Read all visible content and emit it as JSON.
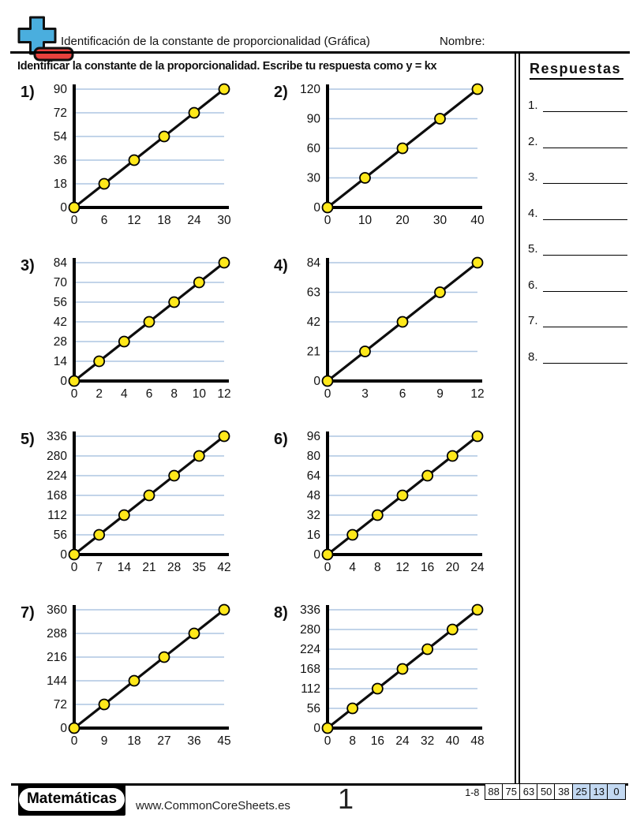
{
  "header": {
    "title": "Identificación de la constante de proporcionalidad (Gráfica)",
    "name_label": "Nombre:"
  },
  "instruction": "Identificar la constante de la proporcionalidad. Escribe tu respuesta como y = kx",
  "answers": {
    "title": "Respuestas",
    "items": [
      {
        "label": "1."
      },
      {
        "label": "2."
      },
      {
        "label": "3."
      },
      {
        "label": "4."
      },
      {
        "label": "5."
      },
      {
        "label": "6."
      },
      {
        "label": "7."
      },
      {
        "label": "8."
      }
    ]
  },
  "chart_data": [
    {
      "type": "line",
      "number_label": "1)",
      "x_ticks": [
        0,
        6,
        12,
        18,
        24,
        30
      ],
      "y_ticks": [
        0,
        18,
        36,
        54,
        72,
        90
      ],
      "points": [
        [
          0,
          0
        ],
        [
          6,
          18
        ],
        [
          12,
          36
        ],
        [
          18,
          54
        ],
        [
          24,
          72
        ],
        [
          30,
          90
        ]
      ],
      "xlim": [
        0,
        30
      ],
      "ylim": [
        0,
        90
      ],
      "grid": "horizontal",
      "legend": "none"
    },
    {
      "type": "line",
      "number_label": "2)",
      "x_ticks": [
        0,
        10,
        20,
        30,
        40
      ],
      "y_ticks": [
        0,
        30,
        60,
        90,
        120
      ],
      "points": [
        [
          0,
          0
        ],
        [
          10,
          30
        ],
        [
          20,
          60
        ],
        [
          30,
          90
        ],
        [
          40,
          120
        ]
      ],
      "xlim": [
        0,
        40
      ],
      "ylim": [
        0,
        120
      ],
      "grid": "horizontal",
      "legend": "none"
    },
    {
      "type": "line",
      "number_label": "3)",
      "x_ticks": [
        0,
        2,
        4,
        6,
        8,
        10,
        12
      ],
      "y_ticks": [
        0,
        14,
        28,
        42,
        56,
        70,
        84
      ],
      "points": [
        [
          0,
          0
        ],
        [
          2,
          14
        ],
        [
          4,
          28
        ],
        [
          6,
          42
        ],
        [
          8,
          56
        ],
        [
          10,
          70
        ],
        [
          12,
          84
        ]
      ],
      "xlim": [
        0,
        12
      ],
      "ylim": [
        0,
        84
      ],
      "grid": "horizontal",
      "legend": "none"
    },
    {
      "type": "line",
      "number_label": "4)",
      "x_ticks": [
        0,
        3,
        6,
        9,
        12
      ],
      "y_ticks": [
        0,
        21,
        42,
        63,
        84
      ],
      "points": [
        [
          0,
          0
        ],
        [
          3,
          21
        ],
        [
          6,
          42
        ],
        [
          9,
          63
        ],
        [
          12,
          84
        ]
      ],
      "xlim": [
        0,
        12
      ],
      "ylim": [
        0,
        84
      ],
      "grid": "horizontal",
      "legend": "none"
    },
    {
      "type": "line",
      "number_label": "5)",
      "x_ticks": [
        0,
        7,
        14,
        21,
        28,
        35,
        42
      ],
      "y_ticks": [
        0,
        56,
        112,
        168,
        224,
        280,
        336
      ],
      "points": [
        [
          0,
          0
        ],
        [
          7,
          56
        ],
        [
          14,
          112
        ],
        [
          21,
          168
        ],
        [
          28,
          224
        ],
        [
          35,
          280
        ],
        [
          42,
          336
        ]
      ],
      "xlim": [
        0,
        42
      ],
      "ylim": [
        0,
        336
      ],
      "grid": "horizontal",
      "legend": "none"
    },
    {
      "type": "line",
      "number_label": "6)",
      "x_ticks": [
        0,
        4,
        8,
        12,
        16,
        20,
        24
      ],
      "y_ticks": [
        0,
        16,
        32,
        48,
        64,
        80,
        96
      ],
      "points": [
        [
          0,
          0
        ],
        [
          4,
          16
        ],
        [
          8,
          32
        ],
        [
          12,
          48
        ],
        [
          16,
          64
        ],
        [
          20,
          80
        ],
        [
          24,
          96
        ]
      ],
      "xlim": [
        0,
        24
      ],
      "ylim": [
        0,
        96
      ],
      "grid": "horizontal",
      "legend": "none"
    },
    {
      "type": "line",
      "number_label": "7)",
      "x_ticks": [
        0,
        9,
        18,
        27,
        36,
        45
      ],
      "y_ticks": [
        0,
        72,
        144,
        216,
        288,
        360
      ],
      "points": [
        [
          0,
          0
        ],
        [
          9,
          72
        ],
        [
          18,
          144
        ],
        [
          27,
          216
        ],
        [
          36,
          288
        ],
        [
          45,
          360
        ]
      ],
      "xlim": [
        0,
        45
      ],
      "ylim": [
        0,
        360
      ],
      "grid": "horizontal",
      "legend": "none"
    },
    {
      "type": "line",
      "number_label": "8)",
      "x_ticks": [
        0,
        8,
        16,
        24,
        32,
        40,
        48
      ],
      "y_ticks": [
        0,
        56,
        112,
        168,
        224,
        280,
        336
      ],
      "points": [
        [
          0,
          0
        ],
        [
          8,
          56
        ],
        [
          16,
          112
        ],
        [
          24,
          168
        ],
        [
          32,
          224
        ],
        [
          40,
          280
        ],
        [
          48,
          336
        ]
      ],
      "xlim": [
        0,
        48
      ],
      "ylim": [
        0,
        336
      ],
      "grid": "horizontal",
      "legend": "none"
    }
  ],
  "footer": {
    "brand": "Matemáticas",
    "website": "www.CommonCoreSheets.es",
    "page_number": "1",
    "score_range_label": "1-8",
    "score_cells": [
      {
        "value": "88",
        "highlighted": false
      },
      {
        "value": "75",
        "highlighted": false
      },
      {
        "value": "63",
        "highlighted": false
      },
      {
        "value": "50",
        "highlighted": false
      },
      {
        "value": "38",
        "highlighted": false
      },
      {
        "value": "25",
        "highlighted": true
      },
      {
        "value": "13",
        "highlighted": true
      },
      {
        "value": "0",
        "highlighted": true
      }
    ]
  },
  "colors": {
    "gridline": "#aec6e2",
    "point_fill": "#ffe81a",
    "axis": "#000000",
    "line": "#0d0d0d",
    "score_highlight": "#c3d9f2",
    "logo_plus_blue": "#4aaede",
    "logo_minus_red": "#e8413d"
  }
}
